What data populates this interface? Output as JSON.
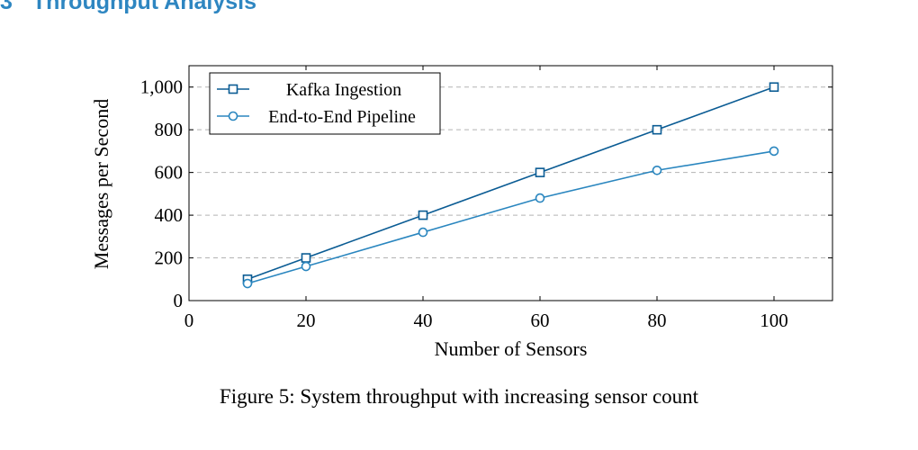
{
  "section": {
    "number": "3",
    "title": "Throughput Analysis"
  },
  "caption": "Figure 5: System throughput with increasing sensor count",
  "colors": {
    "heading": "#2e86c1",
    "series_1": "#0b5c94",
    "series_2": "#2a86bf",
    "grid": "#b3b3b3"
  },
  "chart_data": {
    "type": "line",
    "title": "",
    "xlabel": "Number of Sensors",
    "ylabel": "Messages per Second",
    "xlim": [
      0,
      110
    ],
    "ylim": [
      0,
      1100
    ],
    "x_ticks": [
      0,
      20,
      40,
      60,
      80,
      100
    ],
    "x_tick_labels": [
      "0",
      "20",
      "40",
      "60",
      "80",
      "100"
    ],
    "y_ticks": [
      0,
      200,
      400,
      600,
      800,
      1000
    ],
    "y_tick_labels": [
      "0",
      "200",
      "400",
      "600",
      "800",
      "1,000"
    ],
    "grid": "horizontal-dashed",
    "legend_position": "top-left",
    "series": [
      {
        "name": "Kafka Ingestion",
        "marker": "square",
        "color": "#0b5c94",
        "x": [
          10,
          20,
          40,
          60,
          80,
          100
        ],
        "y": [
          100,
          200,
          400,
          600,
          800,
          1000
        ]
      },
      {
        "name": "End-to-End Pipeline",
        "marker": "circle",
        "color": "#2a86bf",
        "x": [
          10,
          20,
          40,
          60,
          80,
          100
        ],
        "y": [
          80,
          160,
          320,
          480,
          610,
          700
        ]
      }
    ]
  }
}
